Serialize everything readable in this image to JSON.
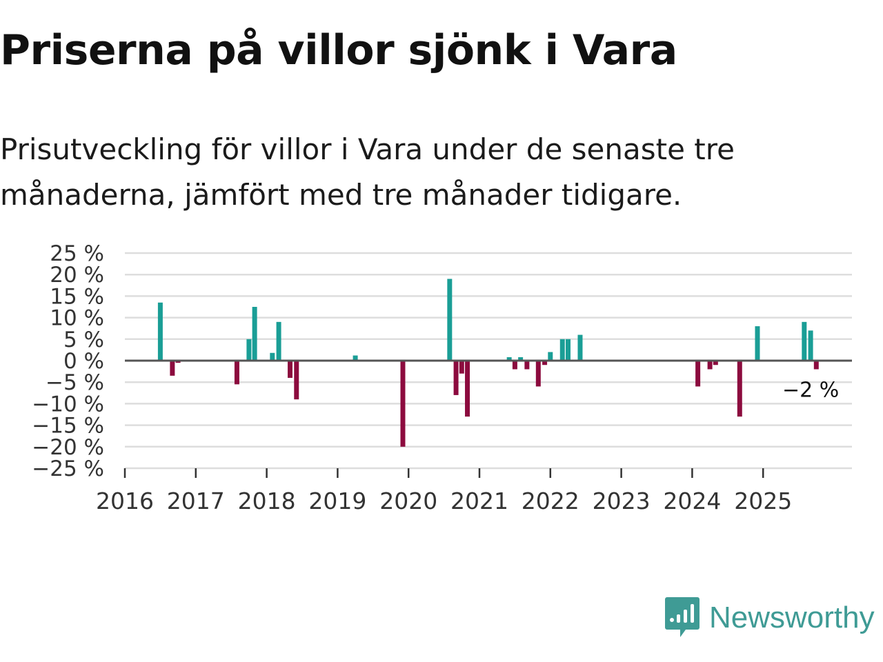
{
  "header": {
    "title": "Priserna på villor sjönk i Vara",
    "subtitle": "Prisutveckling för villor i Vara under de senaste tre månaderna, jämfört med tre månader tidigare."
  },
  "logo": {
    "text": "Newsworthy",
    "icon": "newsworthy-chart-icon"
  },
  "colors": {
    "positive": "#1a9e96",
    "negative": "#8c0b3e",
    "grid": "#dddddd",
    "zero": "#555555"
  },
  "chart_data": {
    "type": "bar",
    "title": "Priserna på villor sjönk i Vara",
    "ylabel": "",
    "xlabel": "",
    "ylim": [
      -25,
      25
    ],
    "yticks": [
      25,
      20,
      15,
      10,
      5,
      0,
      -5,
      -10,
      -15,
      -20,
      -25
    ],
    "ytick_labels": [
      "25 %",
      "20 %",
      "15 %",
      "10 %",
      "5 %",
      "0 %",
      "−5 %",
      "−10 %",
      "−15 %",
      "−20 %",
      "−25 %"
    ],
    "xrange": [
      2016.0,
      2026.25
    ],
    "xticks": [
      2016,
      2017,
      2018,
      2019,
      2020,
      2021,
      2022,
      2023,
      2024,
      2025
    ],
    "xtick_labels": [
      "2016",
      "2017",
      "2018",
      "2019",
      "2020",
      "2021",
      "2022",
      "2023",
      "2024",
      "2025"
    ],
    "grid": true,
    "series": [
      {
        "name": "Prisutveckling",
        "points": [
          {
            "x": 2016.5,
            "y": 13.5
          },
          {
            "x": 2016.67,
            "y": -3.5
          },
          {
            "x": 2016.75,
            "y": -0.5
          },
          {
            "x": 2017.58,
            "y": -5.5
          },
          {
            "x": 2017.75,
            "y": 5
          },
          {
            "x": 2017.83,
            "y": 12.5
          },
          {
            "x": 2018.08,
            "y": 1.8
          },
          {
            "x": 2018.17,
            "y": 9
          },
          {
            "x": 2018.33,
            "y": -4
          },
          {
            "x": 2018.42,
            "y": -9
          },
          {
            "x": 2019.25,
            "y": 1.2
          },
          {
            "x": 2019.92,
            "y": -20
          },
          {
            "x": 2020.58,
            "y": 19
          },
          {
            "x": 2020.67,
            "y": -8
          },
          {
            "x": 2020.75,
            "y": -3
          },
          {
            "x": 2020.83,
            "y": -13
          },
          {
            "x": 2021.42,
            "y": 0.8
          },
          {
            "x": 2021.5,
            "y": -2
          },
          {
            "x": 2021.58,
            "y": 0.8
          },
          {
            "x": 2021.67,
            "y": -2
          },
          {
            "x": 2021.83,
            "y": -6
          },
          {
            "x": 2021.92,
            "y": -1
          },
          {
            "x": 2022.0,
            "y": 2
          },
          {
            "x": 2022.17,
            "y": 5
          },
          {
            "x": 2022.25,
            "y": 5
          },
          {
            "x": 2022.42,
            "y": 6
          },
          {
            "x": 2024.08,
            "y": -6
          },
          {
            "x": 2024.25,
            "y": -2
          },
          {
            "x": 2024.33,
            "y": -1
          },
          {
            "x": 2024.67,
            "y": -13
          },
          {
            "x": 2024.92,
            "y": 8
          },
          {
            "x": 2025.58,
            "y": 9
          },
          {
            "x": 2025.67,
            "y": 7
          },
          {
            "x": 2025.75,
            "y": -2
          }
        ]
      }
    ],
    "annotations": [
      {
        "text": "−2 %",
        "x": 2025.75,
        "y": -2
      }
    ]
  }
}
